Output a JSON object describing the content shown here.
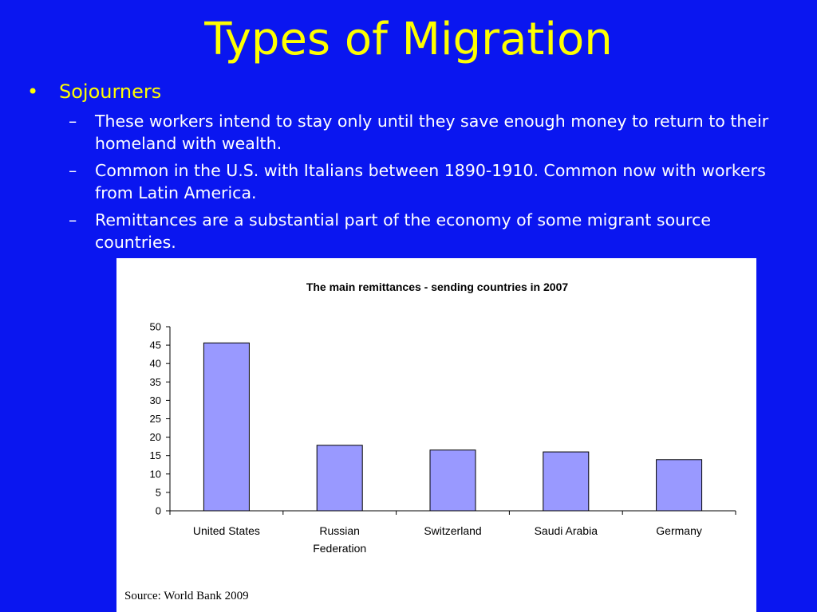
{
  "slide": {
    "title": "Types of Migration",
    "bullet": "Sojourners",
    "sub_items": [
      "These workers intend to stay only until they save enough money to return to their homeland with wealth.",
      "Common in the U.S. with Italians between 1890-1910. Common now with workers from Latin America.",
      "Remittances are a substantial part of the economy of some migrant source countries."
    ]
  },
  "colors": {
    "background": "#0a16f0",
    "title": "#ffff00",
    "bar_fill": "#9999ff",
    "bar_stroke": "#000000"
  },
  "chart_data": {
    "type": "bar",
    "title": "The main remittances - sending countries in 2007",
    "categories": [
      "United States",
      "Russian Federation",
      "Switzerland",
      "Saudi Arabia",
      "Germany"
    ],
    "category_lines": [
      [
        "United States"
      ],
      [
        "Russian",
        "Federation"
      ],
      [
        "Switzerland"
      ],
      [
        "Saudi Arabia"
      ],
      [
        "Germany"
      ]
    ],
    "values": [
      45.6,
      17.8,
      16.5,
      16.0,
      13.9
    ],
    "ylim": [
      0,
      50
    ],
    "yticks": [
      0,
      5,
      10,
      15,
      20,
      25,
      30,
      35,
      40,
      45,
      50
    ],
    "xlabel": "",
    "ylabel": "",
    "grid": false,
    "legend": "none",
    "source": "Source: World Bank 2009"
  }
}
